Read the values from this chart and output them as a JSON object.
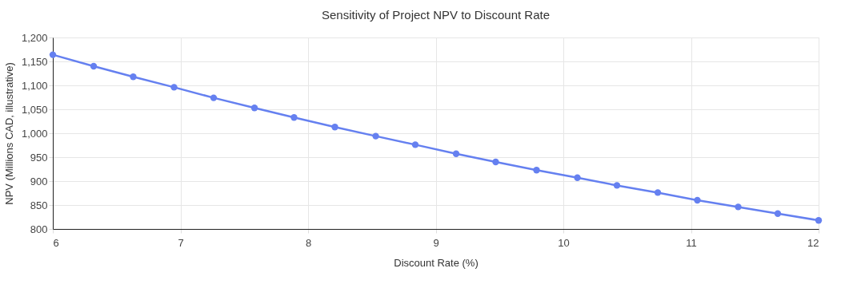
{
  "chart_data": {
    "type": "line",
    "title": "Sensitivity of Project NPV to Discount Rate",
    "xlabel": "Discount Rate (%)",
    "ylabel": "NPV (Millions CAD, illustrative)",
    "x": [
      6,
      6.32,
      6.63,
      6.95,
      7.26,
      7.58,
      7.89,
      8.21,
      8.53,
      8.84,
      9.16,
      9.47,
      9.79,
      10.11,
      10.42,
      10.74,
      11.05,
      11.37,
      11.68,
      12
    ],
    "series": [
      {
        "color": "#6580f0",
        "values": [
          1164,
          1140,
          1118,
          1096,
          1074,
          1053,
          1033,
          1013,
          994,
          976,
          957,
          940,
          923,
          907,
          891,
          876,
          860,
          846,
          832,
          818
        ]
      }
    ],
    "xlim": [
      6,
      12
    ],
    "xticks": [
      6,
      7,
      8,
      9,
      10,
      11,
      12
    ],
    "ylim": [
      800,
      1200
    ],
    "yticks": [
      800,
      850,
      900,
      950,
      {
        "value": 1000,
        "label": "1,000"
      },
      {
        "value": 1050,
        "label": "1,050"
      },
      {
        "value": 1100,
        "label": "1,100"
      },
      {
        "value": 1150,
        "label": "1,150"
      },
      {
        "value": 1200,
        "label": "1,200"
      }
    ],
    "grid": true,
    "marker": "circle",
    "line_style": "solid"
  }
}
